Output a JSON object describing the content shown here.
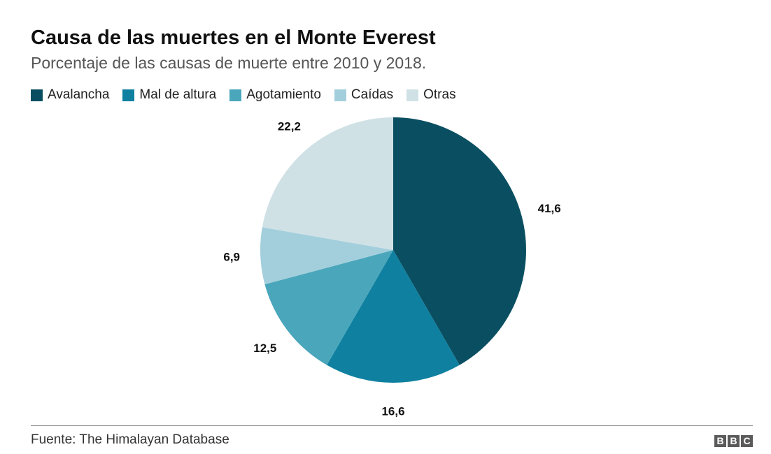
{
  "chart_data": {
    "type": "pie",
    "title": "Causa de las muertes en el Monte Everest",
    "subtitle": "Porcentaje de las causas de muerte entre 2010 y 2018.",
    "categories": [
      "Avalancha",
      "Mal de altura",
      "Agotamiento",
      "Caídas",
      "Otras"
    ],
    "values": [
      41.6,
      16.6,
      12.5,
      6.9,
      22.2
    ],
    "value_labels": [
      "41,6",
      "16,6",
      "12,5",
      "6,9",
      "22,2"
    ],
    "colors": [
      "#0a4f61",
      "#0f80a0",
      "#4aa6bb",
      "#a3cfdc",
      "#d0e1e6"
    ],
    "legend": {
      "position": "top-left",
      "items": [
        {
          "label": "Avalancha",
          "color": "#0a4f61"
        },
        {
          "label": "Mal de altura",
          "color": "#0f80a0"
        },
        {
          "label": "Agotamiento",
          "color": "#4aa6bb"
        },
        {
          "label": "Caídas",
          "color": "#a3cfdc"
        },
        {
          "label": "Otras",
          "color": "#d0e1e6"
        }
      ]
    },
    "source": "Fuente: The Himalayan Database"
  },
  "branding": {
    "logo": [
      "B",
      "B",
      "C"
    ],
    "logo_color": "#5a5a5a"
  }
}
